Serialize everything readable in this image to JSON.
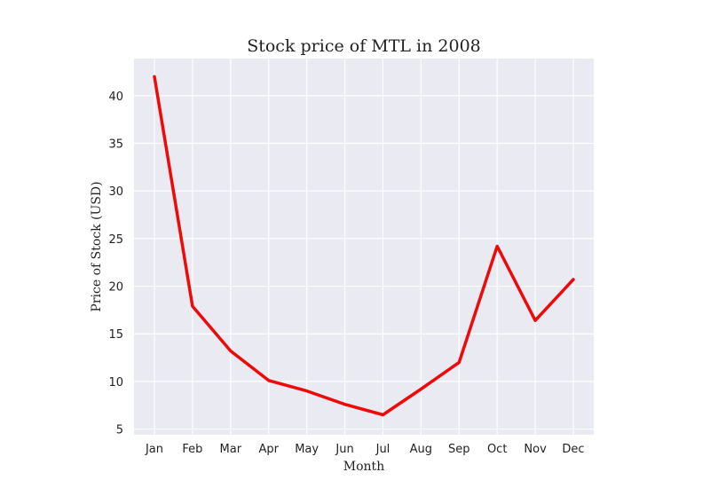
{
  "chart_data": {
    "type": "line",
    "title": "Stock price of MTL in 2008",
    "xlabel": "Month",
    "ylabel": "Price of Stock (USD)",
    "categories": [
      "Jan",
      "Feb",
      "Mar",
      "Apr",
      "May",
      "Jun",
      "Jul",
      "Aug",
      "Sep",
      "Oct",
      "Nov",
      "Dec"
    ],
    "series": [
      {
        "values": [
          42.0,
          17.9,
          13.2,
          10.1,
          9.0,
          7.6,
          6.5,
          9.2,
          12.0,
          24.2,
          16.4,
          20.7
        ]
      }
    ],
    "yticks": [
      5,
      10,
      15,
      20,
      25,
      30,
      35,
      40
    ],
    "ylim": [
      4.4,
      43.9
    ],
    "grid": true,
    "colors": {
      "line": "#ee0a0a",
      "plot_background": "#eaeaf2",
      "grid": "#ffffff"
    }
  }
}
